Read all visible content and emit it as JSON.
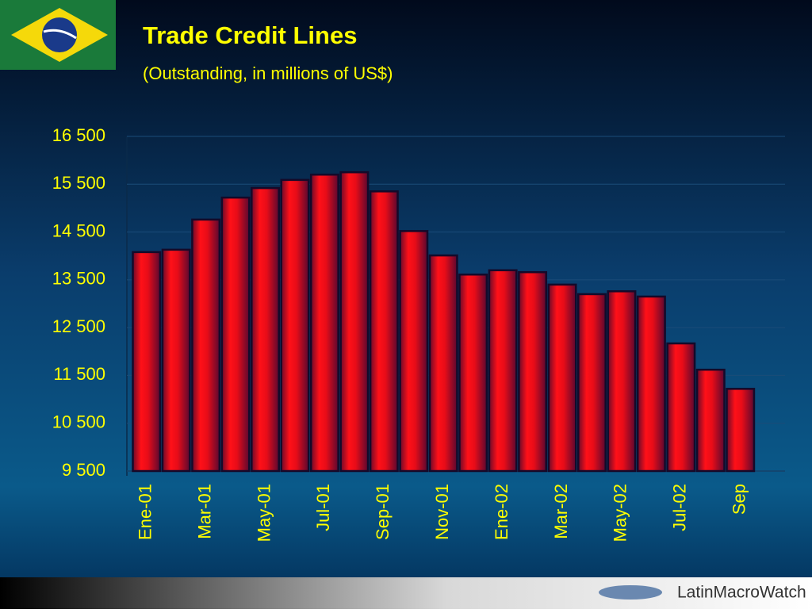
{
  "chart_data": {
    "type": "bar",
    "title": "Trade Credit Lines",
    "subtitle": "(Outstanding, in millions of US$)",
    "categories": [
      "Ene-01",
      null,
      "Mar-01",
      null,
      "May-01",
      null,
      "Jul-01",
      null,
      "Sep-01",
      null,
      "Nov-01",
      null,
      "Ene-02",
      null,
      "Mar-02",
      null,
      "May-02",
      null,
      "Jul-02",
      null,
      "Sep"
    ],
    "values": [
      14080,
      14130,
      14760,
      15220,
      15420,
      15590,
      15700,
      15750,
      15350,
      14520,
      14010,
      13610,
      13700,
      13660,
      13400,
      13200,
      13260,
      13150,
      12170,
      11620,
      11220
    ],
    "color": "#e8101c",
    "ylim": [
      9500,
      16500
    ],
    "yticks": [
      {
        "value": 9500,
        "label": "9 500"
      },
      {
        "value": 10500,
        "label": "10 500"
      },
      {
        "value": 11500,
        "label": "11 500"
      },
      {
        "value": 12500,
        "label": "12 500"
      },
      {
        "value": 13500,
        "label": "13 500"
      },
      {
        "value": 14500,
        "label": "14 500"
      },
      {
        "value": 15500,
        "label": "15 500"
      },
      {
        "value": 16500,
        "label": "16 500"
      }
    ],
    "grid": true
  },
  "footer": "LatinMacroWatch"
}
